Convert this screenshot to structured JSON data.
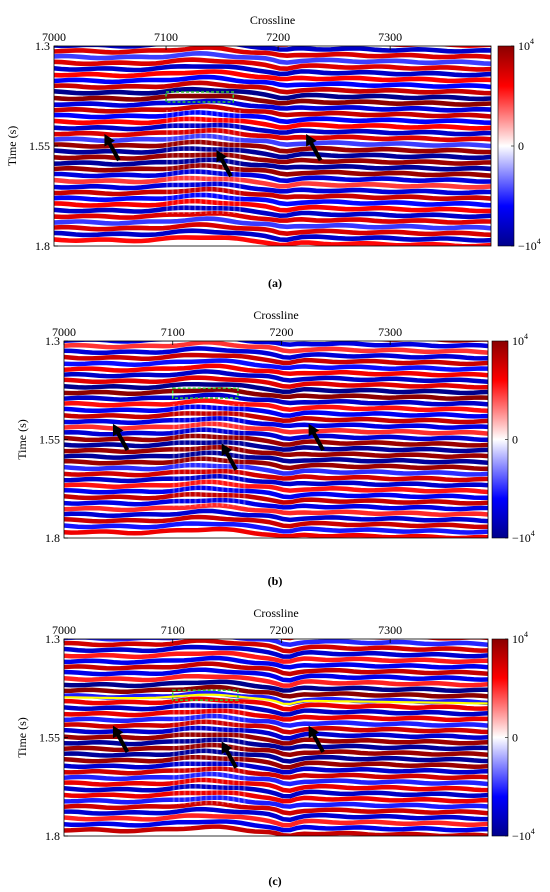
{
  "colors": {
    "positive": "#8b0000",
    "negative": "#00008b",
    "zero": "#ffffff",
    "box": "#33cc33",
    "horizon": "#ffff00",
    "arrow": "#000000"
  },
  "chart_data": [
    {
      "type": "heatmap",
      "label": "(a)",
      "xlabel": "Crossline",
      "ylabel": "Time (s)",
      "xlim": [
        7000,
        7390
      ],
      "ylim": [
        1.3,
        1.8
      ],
      "xticks": [
        "7000",
        "7100",
        "7200",
        "7300"
      ],
      "yticks": [
        "1.3",
        "1.55",
        "1.8"
      ],
      "colorbar": {
        "ticks": [
          "10",
          "0",
          "−10"
        ],
        "exponent": "4",
        "range": [
          -10000,
          10000
        ]
      },
      "arrows": [
        {
          "x": 7045,
          "y": 1.52
        },
        {
          "x": 7145,
          "y": 1.56
        },
        {
          "x": 7225,
          "y": 1.52
        }
      ],
      "box": {
        "x0": 7100,
        "x1": 7160,
        "y0": 1.415,
        "y1": 1.44
      },
      "horizon_line": false
    },
    {
      "type": "heatmap",
      "label": "(b)",
      "xlabel": "Crossline",
      "ylabel": "Time (s)",
      "xlim": [
        7000,
        7390
      ],
      "ylim": [
        1.3,
        1.8
      ],
      "xticks": [
        "7000",
        "7100",
        "7200",
        "7300"
      ],
      "yticks": [
        "1.3",
        "1.55",
        "1.8"
      ],
      "colorbar": {
        "ticks": [
          "10",
          "0",
          "−10"
        ],
        "exponent": "4",
        "range": [
          -10000,
          10000
        ]
      },
      "arrows": [
        {
          "x": 7045,
          "y": 1.51
        },
        {
          "x": 7145,
          "y": 1.56
        },
        {
          "x": 7225,
          "y": 1.51
        }
      ],
      "box": {
        "x0": 7100,
        "x1": 7160,
        "y0": 1.42,
        "y1": 1.445
      },
      "horizon_line": false
    },
    {
      "type": "heatmap",
      "label": "(c)",
      "xlabel": "Crossline",
      "ylabel": "Time (s)",
      "xlim": [
        7000,
        7390
      ],
      "ylim": [
        1.3,
        1.8
      ],
      "xticks": [
        "7000",
        "7100",
        "7200",
        "7300"
      ],
      "yticks": [
        "1.3",
        "1.55",
        "1.8"
      ],
      "colorbar": {
        "ticks": [
          "10",
          "0",
          "−10"
        ],
        "exponent": "4",
        "range": [
          -10000,
          10000
        ]
      },
      "arrows": [
        {
          "x": 7045,
          "y": 1.52
        },
        {
          "x": 7145,
          "y": 1.56
        },
        {
          "x": 7225,
          "y": 1.52
        }
      ],
      "box": {
        "x0": 7100,
        "x1": 7160,
        "y0": 1.43,
        "y1": 1.455
      },
      "horizon_line": true
    }
  ]
}
